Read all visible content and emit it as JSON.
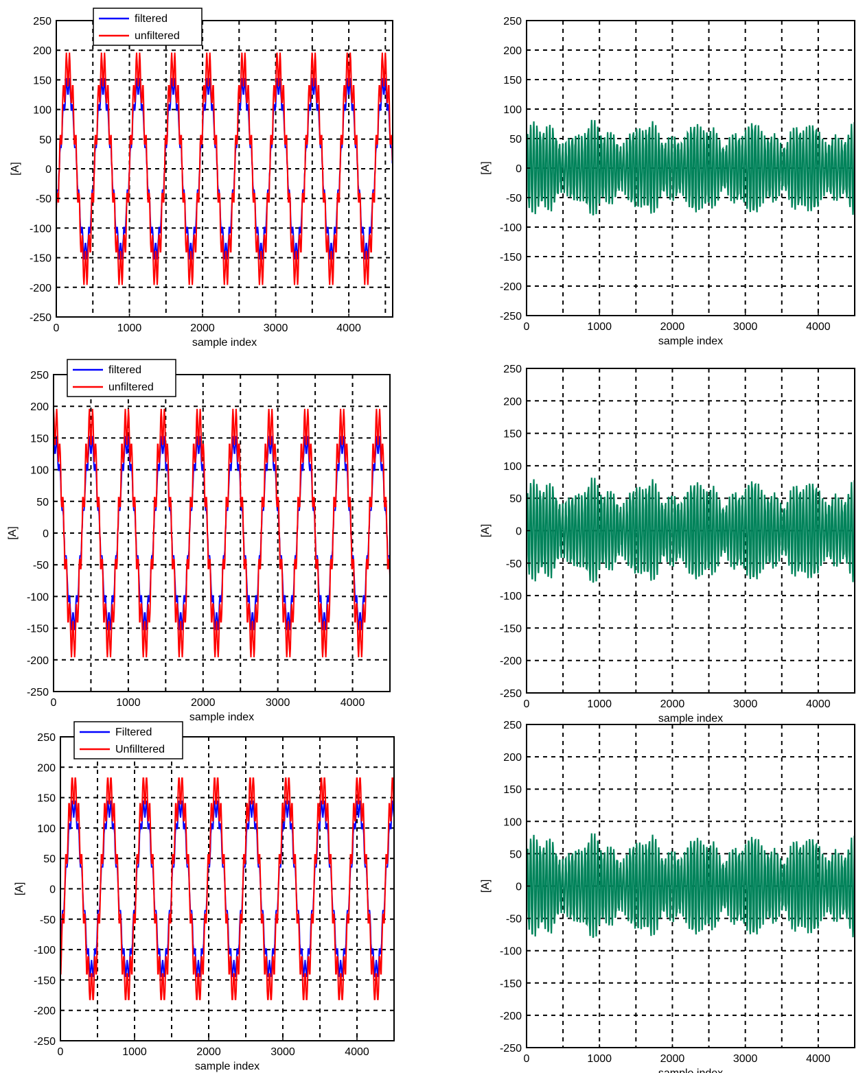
{
  "chart_data": [
    {
      "type": "line",
      "panel": "top-left",
      "xlabel": "sample index",
      "ylabel": "[A]",
      "xlim": [
        0,
        4600
      ],
      "ylim": [
        -250,
        250
      ],
      "xticks": [
        0,
        1000,
        2000,
        3000,
        4000
      ],
      "yticks": [
        -250,
        -200,
        -150,
        -100,
        -50,
        0,
        50,
        100,
        150,
        200,
        250
      ],
      "grid": true,
      "legend_position": "top-left",
      "cycle_period": 480,
      "phase_offset": 40,
      "series": [
        {
          "name": "filtered",
          "color": "#0000ff",
          "waveform": "sine",
          "amplitude": 140,
          "ripple": 15,
          "ripple_harmonic": 11
        },
        {
          "name": "unfiltered",
          "color": "#ff0000",
          "waveform": "sine",
          "amplitude": 170,
          "ripple": 30,
          "ripple_harmonic": 11
        }
      ]
    },
    {
      "type": "line",
      "panel": "top-right",
      "xlabel": "sample index",
      "ylabel": "[A]",
      "xlim": [
        0,
        4500
      ],
      "ylim": [
        -250,
        250
      ],
      "xticks": [
        0,
        1000,
        2000,
        3000,
        4000
      ],
      "yticks": [
        -250,
        -200,
        -150,
        -100,
        -50,
        0,
        50,
        100,
        150,
        200,
        250
      ],
      "grid": true,
      "legend_position": "none",
      "cycle_period": 480,
      "phase_offset": 40,
      "series": [
        {
          "color": "#00835a",
          "waveform": "ripple",
          "amplitude": 65,
          "ripple_period": 44,
          "peak": 90
        }
      ]
    },
    {
      "type": "line",
      "panel": "middle-left",
      "xlabel": "sample index",
      "ylabel": "[A]",
      "xlim": [
        0,
        4500
      ],
      "ylim": [
        -250,
        250
      ],
      "xticks": [
        0,
        1000,
        2000,
        3000,
        4000
      ],
      "yticks": [
        -250,
        -200,
        -150,
        -100,
        -50,
        0,
        50,
        100,
        150,
        200,
        250
      ],
      "grid": true,
      "legend_position": "top-left",
      "cycle_period": 480,
      "phase_offset": -100,
      "series": [
        {
          "name": "filtered",
          "color": "#0000ff",
          "waveform": "sine",
          "amplitude": 140,
          "ripple": 15,
          "ripple_harmonic": 11
        },
        {
          "name": "unfiltered",
          "color": "#ff0000",
          "waveform": "sine",
          "amplitude": 170,
          "ripple": 30,
          "ripple_harmonic": 11
        }
      ]
    },
    {
      "type": "line",
      "panel": "middle-right",
      "xlabel": "sample index",
      "ylabel": "[A]",
      "xlim": [
        0,
        4500
      ],
      "ylim": [
        -250,
        250
      ],
      "xticks": [
        0,
        1000,
        2000,
        3000,
        4000
      ],
      "yticks": [
        -250,
        -200,
        -150,
        -100,
        -50,
        0,
        50,
        100,
        150,
        200,
        250
      ],
      "grid": true,
      "legend_position": "none",
      "cycle_period": 480,
      "phase_offset": -100,
      "series": [
        {
          "color": "#00835a",
          "waveform": "ripple",
          "amplitude": 65,
          "ripple_period": 44,
          "peak": 88
        }
      ]
    },
    {
      "type": "line",
      "panel": "bottom-left",
      "xlabel": "sample index",
      "ylabel": "[A]",
      "xlim": [
        0,
        4500
      ],
      "ylim": [
        -250,
        250
      ],
      "xticks": [
        0,
        1000,
        2000,
        3000,
        4000
      ],
      "yticks": [
        -250,
        -200,
        -150,
        -100,
        -50,
        0,
        50,
        100,
        150,
        200,
        250
      ],
      "grid": true,
      "legend_position": "top-left",
      "cycle_period": 480,
      "phase_offset": 60,
      "series": [
        {
          "name": "Filtered",
          "color": "#0000ff",
          "waveform": "sine",
          "amplitude": 135,
          "ripple": 15,
          "ripple_harmonic": 11
        },
        {
          "name": "Unfilltered",
          "color": "#ff0000",
          "waveform": "sine",
          "amplitude": 165,
          "ripple": 28,
          "ripple_harmonic": 11
        }
      ]
    },
    {
      "type": "line",
      "panel": "bottom-right",
      "xlabel": "sample index",
      "ylabel": "[A]",
      "xlim": [
        0,
        4500
      ],
      "ylim": [
        -250,
        250
      ],
      "xticks": [
        0,
        1000,
        2000,
        3000,
        4000
      ],
      "yticks": [
        -250,
        -200,
        -150,
        -100,
        -50,
        0,
        50,
        100,
        150,
        200,
        250
      ],
      "grid": true,
      "legend_position": "none",
      "cycle_period": 480,
      "phase_offset": 60,
      "series": [
        {
          "color": "#00835a",
          "waveform": "ripple",
          "amplitude": 65,
          "ripple_period": 44,
          "peak": 88
        }
      ]
    }
  ]
}
